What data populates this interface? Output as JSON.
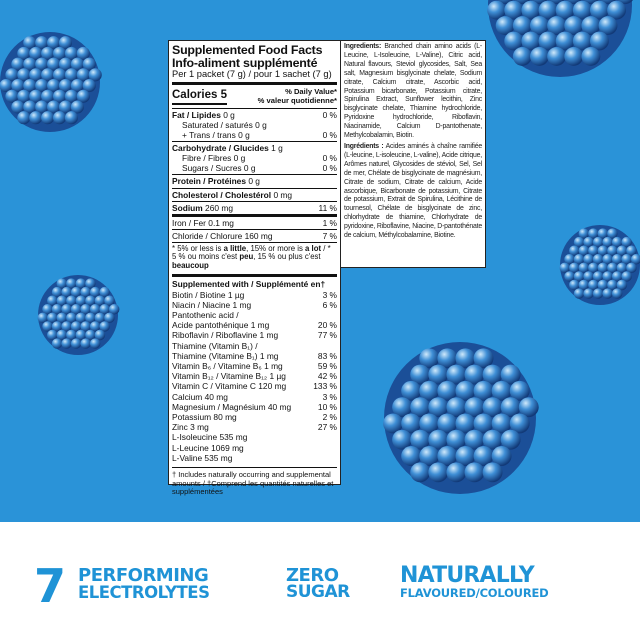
{
  "colors": {
    "background": "#2a93d8",
    "brand_text": "#1f93d6"
  },
  "facts": {
    "title_en": "Supplemented Food Facts",
    "title_fr": "Info-aliment supplémenté",
    "serving": "Per 1 packet (7 g) / pour 1 sachet (7 g)",
    "calories": "Calories 5",
    "dv_en": "% Daily Value*",
    "dv_fr": "% valeur quotidienne*",
    "fat_label": "Fat / Lipides",
    "fat_amt": " 0 g",
    "fat_dv": "0 %",
    "saturated": "Saturated / saturés 0 g",
    "trans": "+ Trans / trans 0 g",
    "sat_trans_dv": "0 %",
    "carb_label": "Carbohydrate / Glucides",
    "carb_amt": " 1 g",
    "fibre": "Fibre / Fibres 0 g",
    "fibre_dv": "0 %",
    "sugars": "Sugars / Sucres 0 g",
    "sugars_dv": "0 %",
    "protein_label": "Protein / Protéines",
    "protein_amt": " 0 g",
    "chol_label": "Cholesterol / Cholestérol",
    "chol_amt": " 0 mg",
    "sodium_label": "Sodium",
    "sodium_amt": " 260 mg",
    "sodium_dv": "11 %",
    "iron": "Iron / Fer 0.1 mg",
    "iron_dv": "1 %",
    "chloride": "Chloride / Chlorure 160 mg",
    "chloride_dv": "7 %",
    "footnote": {
      "a": "* 5% or less is ",
      "b": "a little",
      "c": ", 15% or more is ",
      "d": "a lot",
      "e": " / * 5 % ou moins c'est ",
      "f": "peu",
      "g": ", 15 % ou plus c'est ",
      "h": "beaucoup"
    },
    "supplemented_header": "Supplemented with / Supplémenté en†",
    "supplements": [
      {
        "name": "Biotin / Biotine 1 µg",
        "dv": "3 %"
      },
      {
        "name": "Niacin / Niacine 1 mg",
        "dv": "6 %"
      },
      {
        "name": "Pantothenic acid /",
        "dv": ""
      },
      {
        "name": "Acide pantothénique 1 mg",
        "dv": "20 %"
      },
      {
        "name": "Riboflavin / Riboflavine 1 mg",
        "dv": "77 %"
      },
      {
        "name": "Thiamine (Vitamin B₁) /",
        "dv": ""
      },
      {
        "name": "Thiamine (Vitamine B₁) 1 mg",
        "dv": "83 %"
      },
      {
        "name": "Vitamin B₆ / Vitamine B₆ 1 mg",
        "dv": "59 %"
      },
      {
        "name": "Vitamin B₁₂ / Vitamine B₁₂ 1 µg",
        "dv": "42 %"
      },
      {
        "name": "Vitamin C / Vitamine C 120 mg",
        "dv": "133 %"
      },
      {
        "name": "Calcium 40 mg",
        "dv": "3 %"
      },
      {
        "name": "Magnesium / Magnésium 40 mg",
        "dv": "10 %"
      },
      {
        "name": "Potassium 80 mg",
        "dv": "2 %"
      },
      {
        "name": "Zinc 3 mg",
        "dv": "27 %"
      },
      {
        "name": "L-Isoleucine 535 mg",
        "dv": ""
      },
      {
        "name": "L-Leucine 1069 mg",
        "dv": ""
      },
      {
        "name": "L-Valine 535 mg",
        "dv": ""
      }
    ],
    "footnote2": "† Includes naturally occurring and supplemental amounts / †Comprend les quantités naturelles et supplémentées"
  },
  "ingredients": {
    "en_label": "Ingredients:",
    "en_text": " Branched chain amino acids (L-Leucine, L-Isoleucine, L-Valine), Citric acid, Natural flavours, Steviol glycosides, Salt, Sea salt, Magnesium bisglycinate chelate, Sodium citrate, Calcium citrate, Ascorbic acid, Potassium bicarbonate, Potassium citrate, Spirulina Extract, Sunflower lecithin, Zinc bisglycinate chelate, Thiamine hydrochloride, Pyridoxine hydrochloride, Riboflavin, Niacinamide, Calcium D-pantothenate, Methylcobalamin, Biotin.",
    "fr_label": "Ingrédients :",
    "fr_text": " Acides aminés à chaîne ramifiée (L-leucine, L-isoleucine, L-valine), Acide citrique, Arômes naturel, Glycosides de stéviol, Sel, Sel de mer, Chélate de bisglycinate de magnésium, Citrate de sodium, Citrate de calcium, Acide ascorbique, Bicarbonate de potassium, Citrate de potassium, Extrait de Spirulina, Lécithine de tournesol, Chélate de bisglycinate de zinc, chlorhydrate de thiamine, Chlorhydrate de pyridoxine, Riboflavine, Niacine, D-pantothénate de calcium, Méthylcobalamine, Biotine."
  },
  "banner": {
    "number": "7",
    "performing": "PERFORMING",
    "electrolytes": "ELECTROLYTES",
    "zero": "ZERO",
    "sugar": "SUGAR",
    "naturally": "NATURALLY",
    "flavoured": "FLAVOURED/COLOURED"
  },
  "decor": {
    "image": "blue raspberries"
  }
}
